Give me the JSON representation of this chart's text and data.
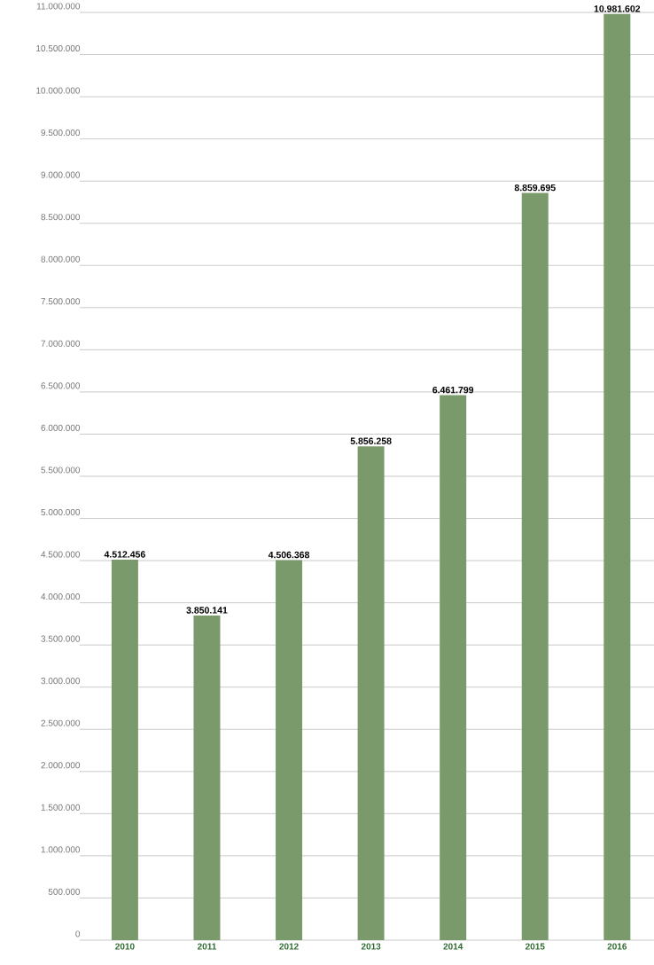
{
  "chart_data": {
    "type": "bar",
    "categories": [
      "2010",
      "2011",
      "2012",
      "2013",
      "2014",
      "2015",
      "2016"
    ],
    "values": [
      4512456,
      3850141,
      4506368,
      5856258,
      6461799,
      8859695,
      10981602
    ],
    "value_labels": [
      "4.512.456",
      "3.850.141",
      "4.506.368",
      "5.856.258",
      "6.461.799",
      "8.859.695",
      "10.981.602"
    ],
    "color": "#7a9a6c",
    "ylim": [
      0,
      11000000
    ],
    "yticks": [
      0,
      {
        "value": 500000,
        "label": "500.000"
      },
      {
        "value": 1000000,
        "label": "1.000.000"
      },
      {
        "value": 1500000,
        "label": "1.500.000"
      },
      {
        "value": 2000000,
        "label": "2.000.000"
      },
      {
        "value": 2500000,
        "label": "2.500.000"
      },
      {
        "value": 3000000,
        "label": "3.000.000"
      },
      {
        "value": 3500000,
        "label": "3.500.000"
      },
      {
        "value": 4000000,
        "label": "4.000.000"
      },
      {
        "value": 4500000,
        "label": "4.500.000"
      },
      {
        "value": 5000000,
        "label": "5.000.000"
      },
      {
        "value": 5500000,
        "label": "5.500.000"
      },
      {
        "value": 6000000,
        "label": "6.000.000"
      },
      {
        "value": 6500000,
        "label": "6.500.000"
      },
      {
        "value": 7000000,
        "label": "7.000.000"
      },
      {
        "value": 7500000,
        "label": "7.500.000"
      },
      {
        "value": 8000000,
        "label": "8.000.000"
      },
      {
        "value": 8500000,
        "label": "8.500.000"
      },
      {
        "value": 9000000,
        "label": "9.000.000"
      },
      {
        "value": 9500000,
        "label": "9.500.000"
      },
      {
        "value": 10000000,
        "label": "10.000.000"
      },
      {
        "value": 10500000,
        "label": "10.500.000"
      },
      {
        "value": 11000000,
        "label": "11.000.000"
      }
    ],
    "grid": "y"
  }
}
